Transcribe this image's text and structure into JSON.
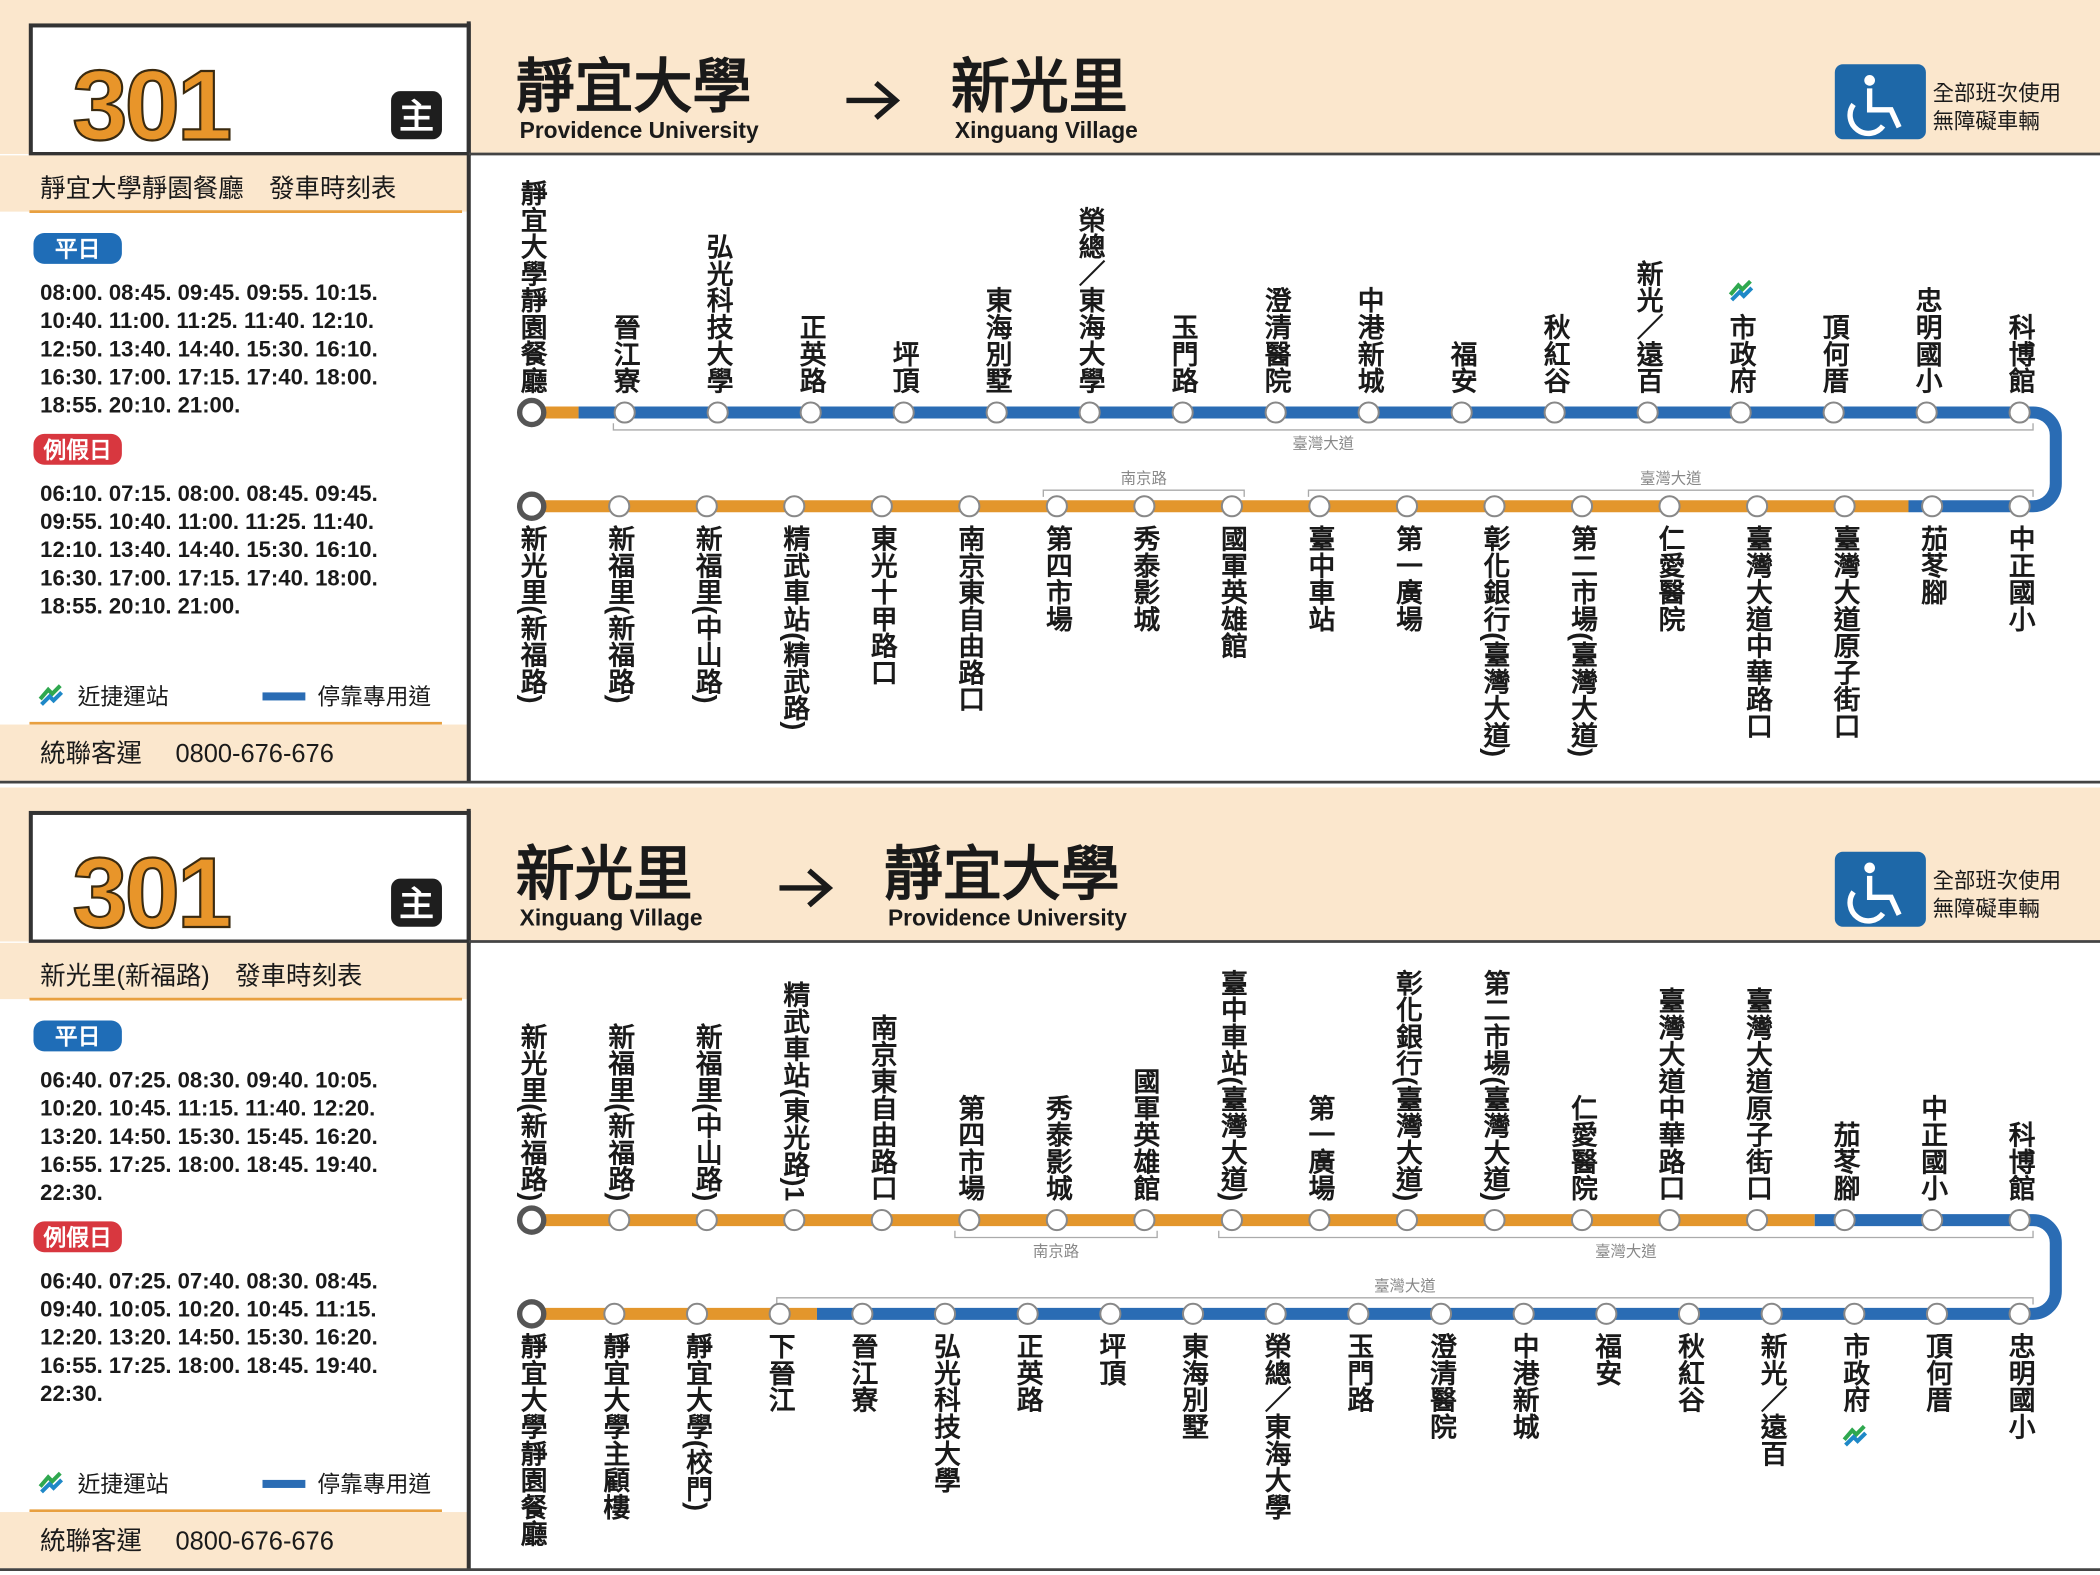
{
  "panels": [
    {
      "route": "301",
      "badge": "主",
      "origin": {
        "zh": "靜宜大學",
        "en": "Providence University"
      },
      "destination": {
        "zh": "新光里",
        "en": "Xinguang Village"
      },
      "accessibility": [
        "全部班次使用",
        "無障礙車輛"
      ],
      "timetable_title": "靜宜大學靜園餐廳　發車時刻表",
      "weekday": {
        "label": "平日",
        "times": [
          "08:00. 08:45. 09:45. 09:55. 10:15.",
          "10:40. 11:00. 11:25. 11:40. 12:10.",
          "12:50. 13:40. 14:40. 15:30. 16:10.",
          "16:30. 17:00. 17:15. 17:40. 18:00.",
          "18:55. 20:10. 21:00."
        ]
      },
      "holiday": {
        "label": "例假日",
        "times": [
          "06:10. 07:15. 08:00. 08:45. 09:45.",
          "09:55. 10:40. 11:00. 11:25. 11:40.",
          "12:10. 13:40. 14:40. 15:30. 16:10.",
          "16:30. 17:00. 17:15. 17:40. 18:00.",
          "18:55. 20:10. 21:00."
        ]
      },
      "legend": {
        "mrt": "近捷運站",
        "bus_lane": "停靠專用道"
      },
      "operator": "統聯客運",
      "phone": "0800-676-676",
      "upper_stops": [
        "靜宜大學靜園餐廳",
        "晉江寮",
        "弘光科技大學",
        "正英路",
        "坪頂",
        "東海別墅",
        "榮總／東海大學",
        "玉門路",
        "澄清醫院",
        "中港新城",
        "福安",
        "秋紅谷",
        "新光／遠百",
        "市政府",
        "頂何厝",
        "忠明國小",
        "科博館"
      ],
      "lower_stops": [
        "新光里(新福路)",
        "新福里(新福路)",
        "新福里(中山路)",
        "精武車站(精武路)",
        "東光十甲路口",
        "南京東自由路口",
        "第四市場",
        "秀泰影城",
        "國軍英雄館",
        "臺中車站",
        "第一廣場",
        "彰化銀行(臺灣大道)",
        "第二市場(臺灣大道)",
        "仁愛醫院",
        "臺灣大道中華路口",
        "臺灣大道原子街口",
        "茄苳腳",
        "中正國小"
      ],
      "roads": [
        "臺灣大道",
        "南京路",
        "臺灣大道"
      ]
    },
    {
      "route": "301",
      "badge": "主",
      "origin": {
        "zh": "新光里",
        "en": "Xinguang Village"
      },
      "destination": {
        "zh": "靜宜大學",
        "en": "Providence University"
      },
      "accessibility": [
        "全部班次使用",
        "無障礙車輛"
      ],
      "timetable_title": "新光里(新福路)　發車時刻表",
      "weekday": {
        "label": "平日",
        "times": [
          "06:40. 07:25. 08:30. 09:40. 10:05.",
          "10:20. 10:45. 11:15. 11:40. 12:20.",
          "13:20. 14:50. 15:30. 15:45. 16:20.",
          "16:55. 17:25. 18:00. 18:45. 19:40.",
          "22:30."
        ]
      },
      "holiday": {
        "label": "例假日",
        "times": [
          "06:40. 07:25. 07:40. 08:30. 08:45.",
          "09:40. 10:05. 10:20. 10:45. 11:15.",
          "12:20. 13:20. 14:50. 15:30. 16:20.",
          "16:55. 17:25. 18:00. 18:45. 19:40.",
          "22:30."
        ]
      },
      "legend": {
        "mrt": "近捷運站",
        "bus_lane": "停靠專用道"
      },
      "operator": "統聯客運",
      "phone": "0800-676-676",
      "upper_stops": [
        "新光里(新福路)",
        "新福里(新福路)",
        "新福里(中山路)",
        "精武車站(東光路)1",
        "南京東自由路口",
        "第四市場",
        "秀泰影城",
        "國軍英雄館",
        "臺中車站(臺灣大道)",
        "第一廣場",
        "彰化銀行(臺灣大道)",
        "第二市場(臺灣大道)",
        "仁愛醫院",
        "臺灣大道中華路口",
        "臺灣大道原子街口",
        "茄苳腳",
        "中正國小",
        "科博館"
      ],
      "lower_stops": [
        "靜宜大學靜園餐廳",
        "靜宜大學主顧樓",
        "靜宜大學(校門)",
        "下晉江",
        "晉江寮",
        "弘光科技大學",
        "正英路",
        "坪頂",
        "東海別墅",
        "榮總／東海大學",
        "玉門路",
        "澄清醫院",
        "中港新城",
        "福安",
        "秋紅谷",
        "新光／遠百",
        "市政府",
        "頂何厝",
        "忠明國小"
      ],
      "roads": [
        "南京路",
        "臺灣大道",
        "臺灣大道"
      ]
    }
  ]
}
